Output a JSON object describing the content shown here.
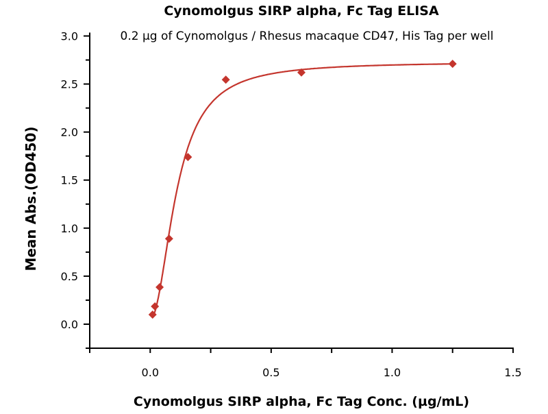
{
  "chart_data": {
    "type": "scatter",
    "title": "Cynomolgus SIRP alpha, Fc Tag ELISA",
    "subtitle": "0.2 µg of Cynomolgus / Rhesus macaque CD47, His Tag per well",
    "xlabel": "Cynomolgus SIRP alpha, Fc Tag Conc. (µg/mL)",
    "ylabel": "Mean Abs.(OD450)",
    "xlim": [
      -0.25,
      1.5
    ],
    "ylim": [
      -0.25,
      3.0
    ],
    "xticks": [
      "0.0",
      "0.5",
      "1.0",
      "1.5"
    ],
    "xtick_values": [
      0,
      0.5,
      1.0,
      1.5
    ],
    "yticks": [
      "0.0",
      "0.5",
      "1.0",
      "1.5",
      "2.0",
      "2.5",
      "3.0"
    ],
    "ytick_values": [
      0,
      0.5,
      1.0,
      1.5,
      2.0,
      2.5,
      3.0
    ],
    "grid": false,
    "series": [
      {
        "name": "Cynomolgus SIRP alpha, Fc Tag",
        "color": "#c4352d",
        "marker": "diamond",
        "x": [
          0.0098,
          0.0195,
          0.039,
          0.078,
          0.156,
          0.3125,
          0.625,
          1.25
        ],
        "y": [
          0.1,
          0.185,
          0.385,
          0.89,
          1.74,
          2.545,
          2.62,
          2.71
        ],
        "fit": {
          "model": "4PL",
          "bottom": 0.05,
          "top": 2.73,
          "ec50": 0.11,
          "hill": 2.0
        }
      }
    ]
  }
}
